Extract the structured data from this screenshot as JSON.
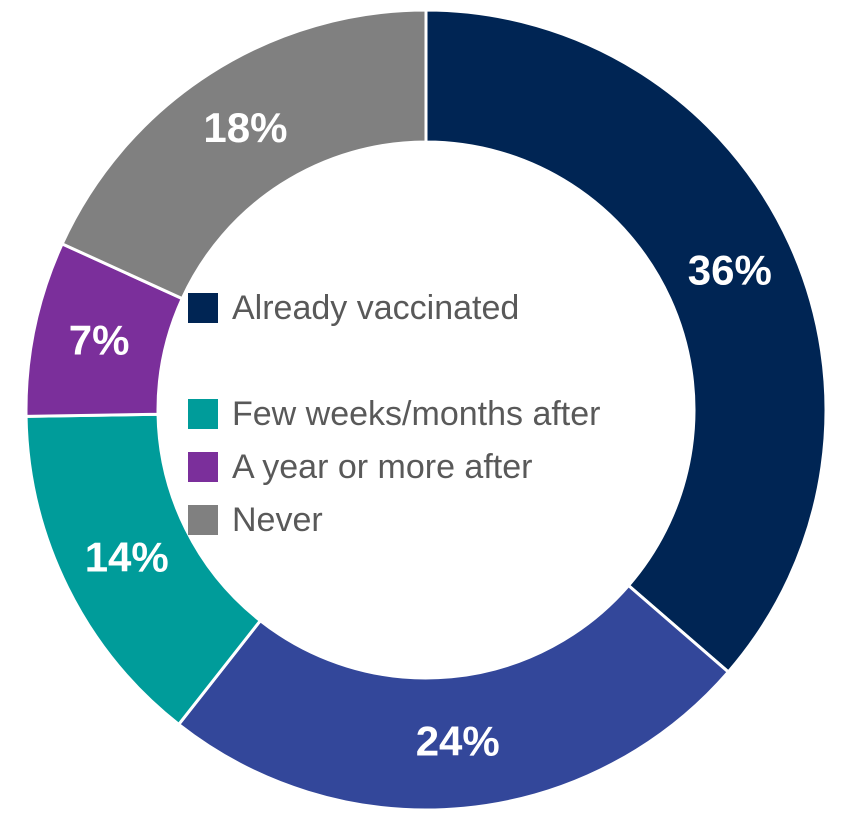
{
  "chart_data": {
    "type": "donut",
    "categories": [
      "Already vaccinated",
      null,
      "Few weeks/months after",
      "A year or more after",
      "Never"
    ],
    "values": [
      36,
      24,
      14,
      7,
      18
    ],
    "value_labels": [
      "36%",
      "24%",
      "14%",
      "7%",
      "18%"
    ],
    "colors": [
      "#002554",
      "#33479a",
      "#009c9a",
      "#7b2f9b",
      "#808080"
    ],
    "legend": "center"
  }
}
